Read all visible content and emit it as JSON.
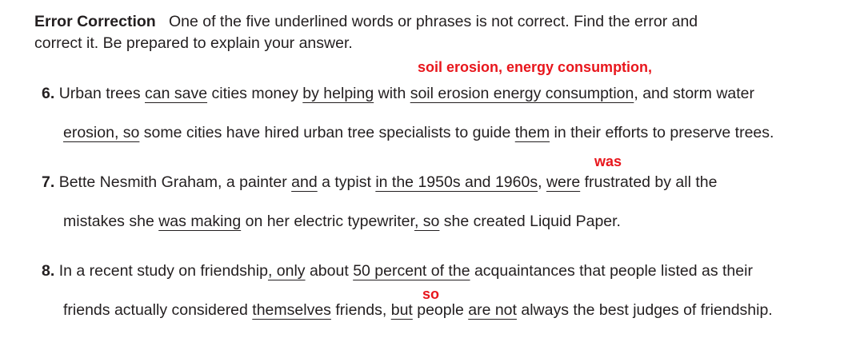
{
  "header": {
    "title": "Error Correction",
    "instructions_line1": "One of the five underlined words or phrases is not correct. Find the error and",
    "instructions_line2": "correct it. Be prepared to explain your answer."
  },
  "items": [
    {
      "number": "6.",
      "correction": "soil erosion, energy consumption,",
      "line1": {
        "t1": "Urban trees ",
        "u1": "can save",
        "t2": " cities money ",
        "u2": "by helping",
        "t3": " with ",
        "u3": "soil erosion energy consumption",
        "t4": ", and storm water"
      },
      "line2": {
        "u4": "erosion, so",
        "t5": " some cities have hired urban tree specialists to guide ",
        "u5": "them",
        "t6": " in their efforts to preserve trees."
      }
    },
    {
      "number": "7.",
      "correction": "was",
      "line1": {
        "t1": "Bette Nesmith Graham, a painter ",
        "u1": "and",
        "t2": " a typist ",
        "u2": "in the 1950s and 1960s",
        "t3": ", ",
        "u3": "were",
        "t4": " frustrated by all the"
      },
      "line2": {
        "t5": "mistakes she ",
        "u4": "was making",
        "t6": " on her electric typewriter",
        "u5": ", so",
        "t7": " she created Liquid Paper."
      }
    },
    {
      "number": "8.",
      "correction": "so",
      "line1": {
        "t1": "In a recent study on friendship",
        "u1": ", only",
        "t2": " about ",
        "u2": "50 percent of the",
        "t3": " acquaintances that people listed as their"
      },
      "line2": {
        "t4": "friends actually considered ",
        "u3": "themselves",
        "t5": " friends, ",
        "u4": "but",
        "t6": " people ",
        "u5": "are not",
        "t7": " always the best judges of friendship."
      }
    }
  ]
}
